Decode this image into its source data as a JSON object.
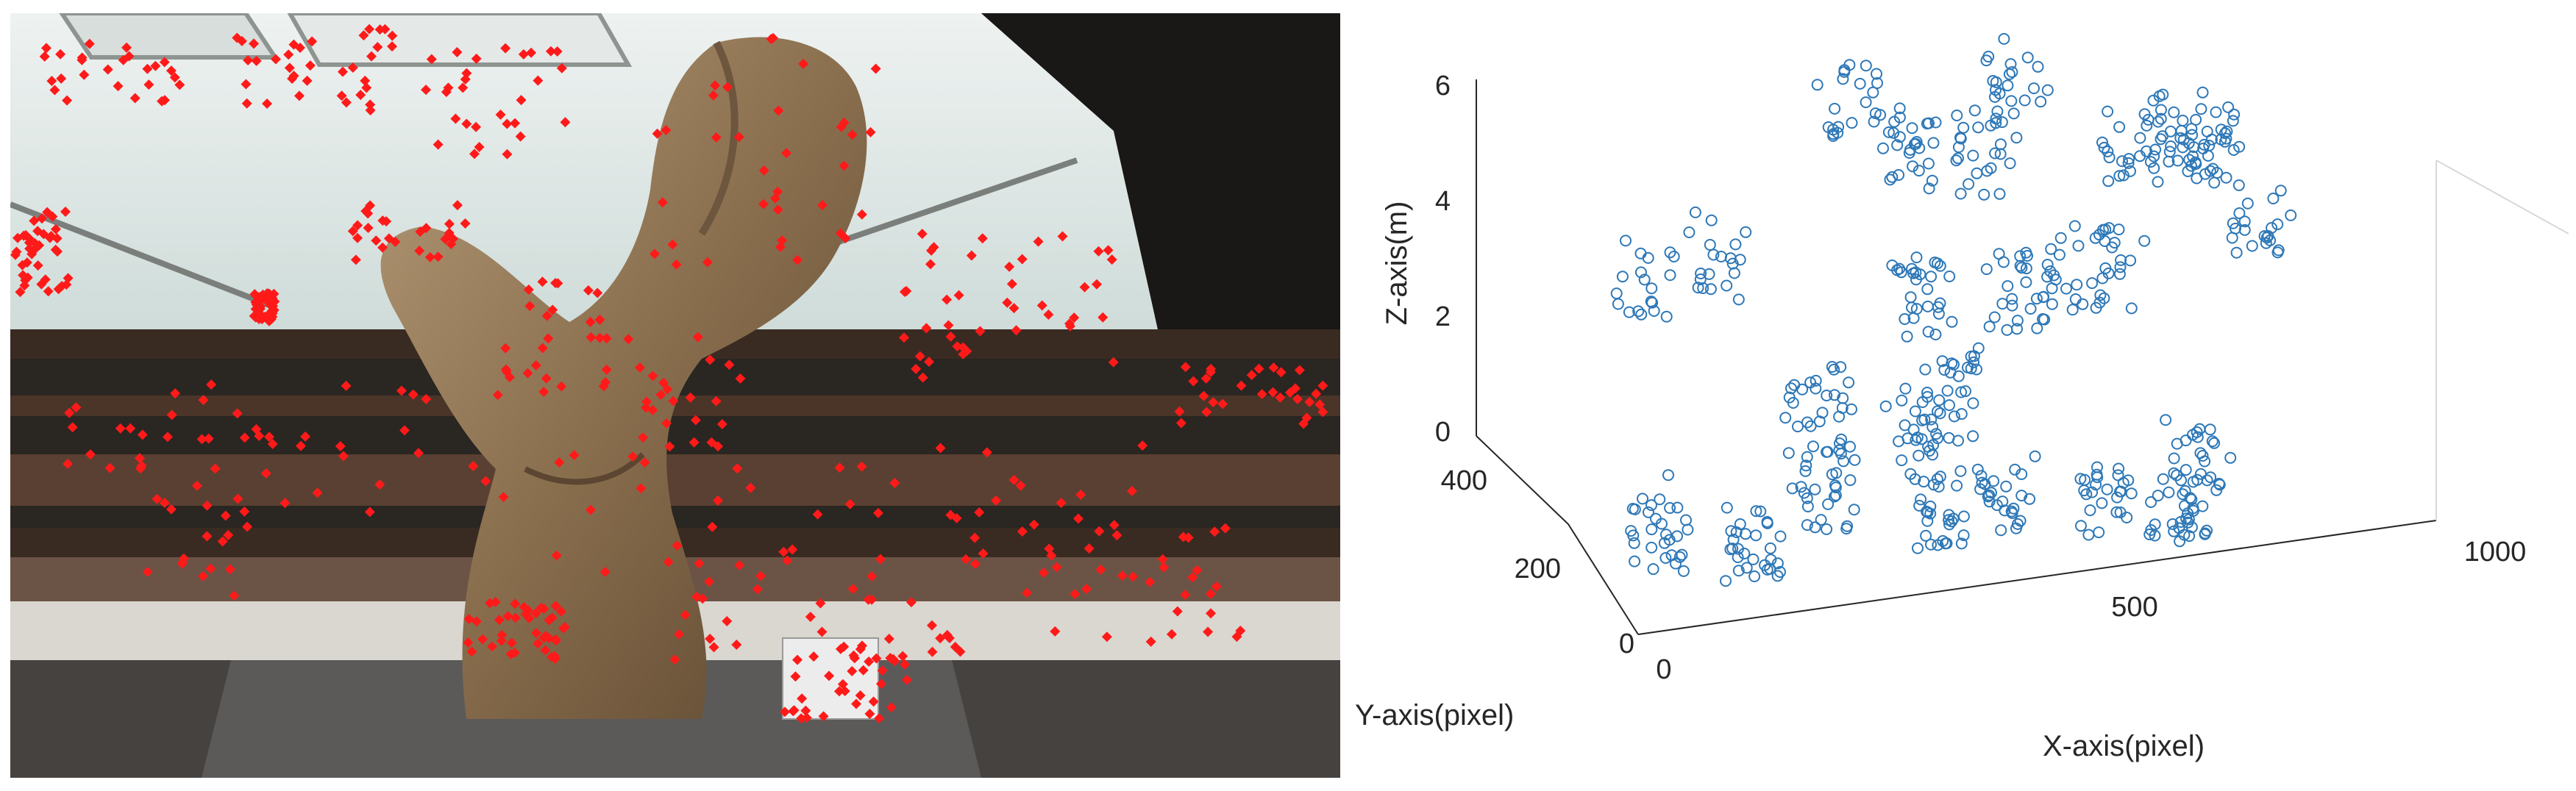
{
  "photo": {
    "subject": "wooden sculpture with detected feature points",
    "marker_color": "#ff1a1a"
  },
  "chart_data": {
    "type": "scatter",
    "projection": "3d",
    "xlabel": "X-axis(pixel)",
    "ylabel": "Y-axis(pixel)",
    "zlabel": "Z-axis(m)",
    "xlim": [
      0,
      1000
    ],
    "ylim": [
      0,
      500
    ],
    "zlim": [
      0,
      7
    ],
    "xticks": [
      "0",
      "500",
      "1000"
    ],
    "yticks": [
      "0",
      "200",
      "400"
    ],
    "zticks": [
      "0",
      "2",
      "4",
      "6"
    ],
    "marker": "open-circle",
    "marker_color": "#2e78b7",
    "grid": false,
    "clusters": [
      {
        "x": 30,
        "y": 60,
        "z": 5.6
      },
      {
        "x": 150,
        "y": 120,
        "z": 5.5
      },
      {
        "x": 420,
        "y": 380,
        "z": 5.8
      },
      {
        "x": 470,
        "y": 330,
        "z": 5.3
      },
      {
        "x": 560,
        "y": 320,
        "z": 5.1
      },
      {
        "x": 620,
        "y": 360,
        "z": 6.0
      },
      {
        "x": 720,
        "y": 250,
        "z": 5.4
      },
      {
        "x": 800,
        "y": 300,
        "z": 5.0
      },
      {
        "x": 870,
        "y": 380,
        "z": 4.0
      },
      {
        "x": 900,
        "y": 300,
        "z": 3.4
      },
      {
        "x": 450,
        "y": 220,
        "z": 3.5
      },
      {
        "x": 560,
        "y": 220,
        "z": 3.3
      },
      {
        "x": 640,
        "y": 300,
        "z": 3.0
      },
      {
        "x": 700,
        "y": 260,
        "z": 3.2
      },
      {
        "x": 300,
        "y": 180,
        "z": 2.0
      },
      {
        "x": 410,
        "y": 160,
        "z": 1.6
      },
      {
        "x": 480,
        "y": 200,
        "z": 1.8
      },
      {
        "x": 50,
        "y": 70,
        "z": 1.3
      },
      {
        "x": 180,
        "y": 90,
        "z": 0.6
      },
      {
        "x": 300,
        "y": 160,
        "z": 0.7
      },
      {
        "x": 420,
        "y": 120,
        "z": 0.5
      },
      {
        "x": 520,
        "y": 140,
        "z": 0.4
      },
      {
        "x": 620,
        "y": 100,
        "z": 0.3
      },
      {
        "x": 700,
        "y": 60,
        "z": 0.2
      },
      {
        "x": 760,
        "y": 140,
        "z": 0.5
      }
    ]
  }
}
